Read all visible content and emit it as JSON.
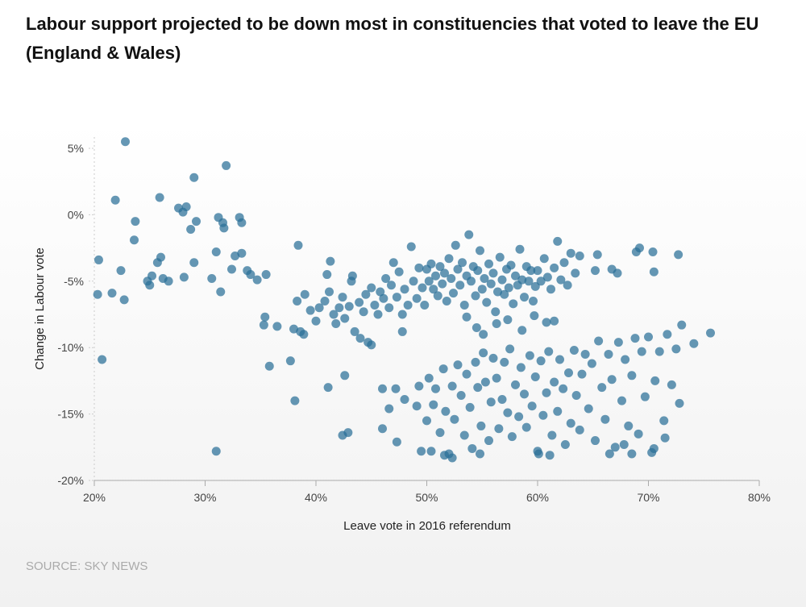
{
  "chart_data": {
    "type": "scatter",
    "title": "Labour support projected to be down most in constituencies that voted to leave the EU (England & Wales)",
    "xlabel": "Leave vote in 2016 referendum",
    "ylabel": "Change in Labour vote",
    "xlim": [
      20,
      80
    ],
    "ylim": [
      -20,
      5
    ],
    "x_ticks": [
      "20%",
      "30%",
      "40%",
      "50%",
      "60%",
      "70%",
      "80%"
    ],
    "y_ticks": [
      "5%",
      "0%",
      "-5%",
      "-10%",
      "-15%",
      "-20%"
    ],
    "point_color": "#2a6f97",
    "source": "SOURCE: SKY NEWS",
    "points": [
      [
        22.8,
        5.5
      ],
      [
        31.9,
        3.7
      ],
      [
        29.0,
        2.8
      ],
      [
        21.9,
        1.1
      ],
      [
        25.9,
        1.3
      ],
      [
        27.6,
        0.5
      ],
      [
        28.3,
        0.6
      ],
      [
        28.0,
        0.2
      ],
      [
        31.2,
        -0.2
      ],
      [
        31.6,
        -0.6
      ],
      [
        33.1,
        -0.2
      ],
      [
        33.3,
        -0.6
      ],
      [
        29.2,
        -0.5
      ],
      [
        23.7,
        -0.5
      ],
      [
        28.7,
        -1.1
      ],
      [
        31.7,
        -1.0
      ],
      [
        23.6,
        -1.9
      ],
      [
        20.4,
        -3.4
      ],
      [
        22.4,
        -4.2
      ],
      [
        24.8,
        -5.0
      ],
      [
        25.2,
        -4.6
      ],
      [
        25.0,
        -5.3
      ],
      [
        26.0,
        -3.2
      ],
      [
        25.7,
        -3.6
      ],
      [
        26.2,
        -4.8
      ],
      [
        26.7,
        -5.0
      ],
      [
        28.1,
        -4.7
      ],
      [
        29.0,
        -3.6
      ],
      [
        30.6,
        -4.8
      ],
      [
        31.0,
        -2.8
      ],
      [
        31.4,
        -5.8
      ],
      [
        32.4,
        -4.1
      ],
      [
        32.7,
        -3.1
      ],
      [
        33.3,
        -2.9
      ],
      [
        33.8,
        -4.2
      ],
      [
        34.1,
        -4.5
      ],
      [
        34.7,
        -4.9
      ],
      [
        35.5,
        -4.5
      ],
      [
        20.3,
        -6.0
      ],
      [
        21.6,
        -5.9
      ],
      [
        22.7,
        -6.4
      ],
      [
        20.7,
        -10.9
      ],
      [
        35.3,
        -8.3
      ],
      [
        35.4,
        -7.7
      ],
      [
        35.8,
        -11.4
      ],
      [
        36.5,
        -8.4
      ],
      [
        37.7,
        -11.0
      ],
      [
        38.1,
        -14.0
      ],
      [
        38.3,
        -6.5
      ],
      [
        38.0,
        -8.6
      ],
      [
        38.4,
        -2.3
      ],
      [
        38.6,
        -8.8
      ],
      [
        38.9,
        -9.0
      ],
      [
        31.0,
        -17.8
      ],
      [
        39.0,
        -6.0
      ],
      [
        39.5,
        -7.2
      ],
      [
        40.0,
        -8.0
      ],
      [
        40.3,
        -7.0
      ],
      [
        40.8,
        -6.5
      ],
      [
        41.2,
        -5.8
      ],
      [
        41.0,
        -4.5
      ],
      [
        41.3,
        -3.5
      ],
      [
        41.6,
        -7.5
      ],
      [
        41.8,
        -8.2
      ],
      [
        42.1,
        -7.0
      ],
      [
        42.4,
        -6.2
      ],
      [
        42.6,
        -7.8
      ],
      [
        43.0,
        -6.9
      ],
      [
        43.2,
        -5.0
      ],
      [
        43.5,
        -8.8
      ],
      [
        43.3,
        -4.6
      ],
      [
        43.9,
        -6.6
      ],
      [
        44.3,
        -7.3
      ],
      [
        44.5,
        -6.0
      ],
      [
        44.7,
        -9.6
      ],
      [
        45.0,
        -5.5
      ],
      [
        45.3,
        -6.8
      ],
      [
        45.6,
        -7.5
      ],
      [
        45.8,
        -5.8
      ],
      [
        46.1,
        -6.3
      ],
      [
        46.3,
        -4.8
      ],
      [
        46.6,
        -7.0
      ],
      [
        46.8,
        -5.3
      ],
      [
        47.0,
        -3.6
      ],
      [
        47.3,
        -6.2
      ],
      [
        47.5,
        -4.3
      ],
      [
        47.8,
        -7.5
      ],
      [
        48.0,
        -5.6
      ],
      [
        48.3,
        -6.8
      ],
      [
        48.6,
        -2.4
      ],
      [
        48.8,
        -5.0
      ],
      [
        49.1,
        -6.3
      ],
      [
        49.3,
        -4.0
      ],
      [
        49.6,
        -5.5
      ],
      [
        49.8,
        -6.8
      ],
      [
        42.6,
        -12.1
      ],
      [
        42.4,
        -16.6
      ],
      [
        42.9,
        -16.4
      ],
      [
        41.1,
        -13.0
      ],
      [
        45.0,
        -9.8
      ],
      [
        44.0,
        -9.3
      ],
      [
        46.0,
        -13.1
      ],
      [
        46.0,
        -16.1
      ],
      [
        46.6,
        -14.6
      ],
      [
        47.2,
        -13.1
      ],
      [
        47.3,
        -17.1
      ],
      [
        48.0,
        -13.9
      ],
      [
        47.8,
        -8.8
      ],
      [
        49.1,
        -14.4
      ],
      [
        49.3,
        -12.9
      ],
      [
        50.0,
        -4.1
      ],
      [
        50.2,
        -5.0
      ],
      [
        50.4,
        -3.7
      ],
      [
        50.6,
        -5.6
      ],
      [
        50.8,
        -4.6
      ],
      [
        51.0,
        -6.1
      ],
      [
        51.2,
        -3.9
      ],
      [
        51.4,
        -5.2
      ],
      [
        51.6,
        -4.4
      ],
      [
        51.8,
        -6.5
      ],
      [
        52.0,
        -3.3
      ],
      [
        52.2,
        -4.8
      ],
      [
        52.4,
        -5.9
      ],
      [
        52.6,
        -2.3
      ],
      [
        52.8,
        -4.1
      ],
      [
        53.0,
        -5.3
      ],
      [
        53.2,
        -3.6
      ],
      [
        53.4,
        -6.8
      ],
      [
        53.6,
        -4.6
      ],
      [
        53.8,
        -1.5
      ],
      [
        54.0,
        -5.0
      ],
      [
        54.2,
        -3.9
      ],
      [
        54.4,
        -6.1
      ],
      [
        54.6,
        -4.2
      ],
      [
        54.8,
        -2.7
      ],
      [
        55.0,
        -5.6
      ],
      [
        55.2,
        -4.8
      ],
      [
        55.4,
        -6.6
      ],
      [
        55.6,
        -3.7
      ],
      [
        55.8,
        -5.2
      ],
      [
        56.0,
        -4.4
      ],
      [
        56.2,
        -7.3
      ],
      [
        56.4,
        -5.8
      ],
      [
        56.6,
        -3.2
      ],
      [
        56.8,
        -4.9
      ],
      [
        57.0,
        -6.0
      ],
      [
        57.2,
        -4.1
      ],
      [
        57.4,
        -5.5
      ],
      [
        57.6,
        -3.8
      ],
      [
        57.8,
        -6.7
      ],
      [
        58.0,
        -4.6
      ],
      [
        58.2,
        -5.3
      ],
      [
        58.4,
        -2.6
      ],
      [
        58.6,
        -4.9
      ],
      [
        58.8,
        -6.2
      ],
      [
        59.0,
        -3.9
      ],
      [
        59.2,
        -5.0
      ],
      [
        59.4,
        -4.2
      ],
      [
        59.6,
        -6.5
      ],
      [
        59.8,
        -5.4
      ],
      [
        60.0,
        -4.2
      ],
      [
        60.3,
        -5.0
      ],
      [
        60.6,
        -3.3
      ],
      [
        60.9,
        -4.7
      ],
      [
        61.2,
        -5.6
      ],
      [
        61.5,
        -4.0
      ],
      [
        61.8,
        -2.0
      ],
      [
        62.1,
        -4.9
      ],
      [
        62.4,
        -3.6
      ],
      [
        62.7,
        -5.3
      ],
      [
        63.0,
        -2.9
      ],
      [
        63.4,
        -4.4
      ],
      [
        63.8,
        -3.1
      ],
      [
        65.2,
        -4.2
      ],
      [
        65.4,
        -3.0
      ],
      [
        66.7,
        -4.1
      ],
      [
        67.2,
        -4.4
      ],
      [
        68.9,
        -2.8
      ],
      [
        69.2,
        -2.5
      ],
      [
        70.4,
        -2.8
      ],
      [
        70.5,
        -4.3
      ],
      [
        72.7,
        -3.0
      ],
      [
        53.6,
        -7.7
      ],
      [
        54.5,
        -8.5
      ],
      [
        55.1,
        -9.0
      ],
      [
        56.3,
        -8.2
      ],
      [
        57.3,
        -7.9
      ],
      [
        58.6,
        -8.7
      ],
      [
        59.7,
        -7.6
      ],
      [
        60.8,
        -8.1
      ],
      [
        61.5,
        -8.0
      ],
      [
        50.0,
        -15.5
      ],
      [
        50.2,
        -12.3
      ],
      [
        50.4,
        -17.8
      ],
      [
        50.6,
        -14.3
      ],
      [
        50.8,
        -13.1
      ],
      [
        51.2,
        -16.4
      ],
      [
        51.5,
        -11.6
      ],
      [
        51.7,
        -14.8
      ],
      [
        52.0,
        -18.0
      ],
      [
        52.3,
        -12.9
      ],
      [
        52.5,
        -15.4
      ],
      [
        52.8,
        -11.3
      ],
      [
        53.1,
        -13.6
      ],
      [
        53.4,
        -16.6
      ],
      [
        53.6,
        -12.0
      ],
      [
        53.9,
        -14.5
      ],
      [
        54.1,
        -17.6
      ],
      [
        54.4,
        -11.1
      ],
      [
        54.6,
        -13.0
      ],
      [
        54.9,
        -15.9
      ],
      [
        55.1,
        -10.4
      ],
      [
        55.3,
        -12.6
      ],
      [
        55.6,
        -17.0
      ],
      [
        55.8,
        -14.1
      ],
      [
        56.0,
        -10.8
      ],
      [
        56.3,
        -12.3
      ],
      [
        56.5,
        -16.1
      ],
      [
        56.8,
        -13.9
      ],
      [
        57.0,
        -11.1
      ],
      [
        57.3,
        -14.9
      ],
      [
        57.5,
        -10.1
      ],
      [
        57.7,
        -16.7
      ],
      [
        58.0,
        -12.8
      ],
      [
        58.3,
        -15.2
      ],
      [
        58.5,
        -11.5
      ],
      [
        58.8,
        -13.5
      ],
      [
        59.0,
        -16.0
      ],
      [
        59.3,
        -10.6
      ],
      [
        59.5,
        -14.4
      ],
      [
        59.8,
        -12.2
      ],
      [
        60.0,
        -17.8
      ],
      [
        60.3,
        -11.0
      ],
      [
        60.5,
        -15.1
      ],
      [
        60.8,
        -13.4
      ],
      [
        61.0,
        -10.3
      ],
      [
        61.3,
        -16.6
      ],
      [
        61.5,
        -12.6
      ],
      [
        61.8,
        -14.8
      ],
      [
        62.0,
        -10.9
      ],
      [
        62.3,
        -13.1
      ],
      [
        62.5,
        -17.3
      ],
      [
        62.8,
        -11.9
      ],
      [
        63.0,
        -15.7
      ],
      [
        63.3,
        -10.2
      ],
      [
        63.5,
        -13.6
      ],
      [
        63.8,
        -16.2
      ],
      [
        64.0,
        -12.0
      ],
      [
        64.3,
        -10.5
      ],
      [
        64.6,
        -14.6
      ],
      [
        64.9,
        -11.2
      ],
      [
        65.2,
        -17.0
      ],
      [
        65.5,
        -9.5
      ],
      [
        65.8,
        -13.0
      ],
      [
        66.1,
        -15.4
      ],
      [
        66.4,
        -10.5
      ],
      [
        66.7,
        -12.4
      ],
      [
        67.0,
        -17.5
      ],
      [
        67.3,
        -9.6
      ],
      [
        67.6,
        -14.0
      ],
      [
        67.9,
        -10.9
      ],
      [
        68.2,
        -15.9
      ],
      [
        68.5,
        -12.1
      ],
      [
        68.8,
        -9.3
      ],
      [
        69.1,
        -16.5
      ],
      [
        69.4,
        -10.3
      ],
      [
        69.7,
        -13.7
      ],
      [
        70.0,
        -9.2
      ],
      [
        70.3,
        -17.9
      ],
      [
        70.6,
        -12.5
      ],
      [
        71.0,
        -10.3
      ],
      [
        71.4,
        -15.5
      ],
      [
        71.7,
        -9.0
      ],
      [
        72.1,
        -12.8
      ],
      [
        72.5,
        -10.1
      ],
      [
        72.8,
        -14.2
      ],
      [
        73.0,
        -8.3
      ],
      [
        74.1,
        -9.7
      ],
      [
        75.6,
        -8.9
      ],
      [
        71.5,
        -16.8
      ],
      [
        70.5,
        -17.6
      ],
      [
        49.5,
        -17.8
      ],
      [
        51.6,
        -18.1
      ],
      [
        52.3,
        -18.3
      ],
      [
        54.8,
        -18.0
      ],
      [
        61.1,
        -18.1
      ],
      [
        60.1,
        -18.0
      ],
      [
        66.5,
        -18.0
      ],
      [
        68.5,
        -18.0
      ],
      [
        67.8,
        -17.3
      ]
    ]
  }
}
